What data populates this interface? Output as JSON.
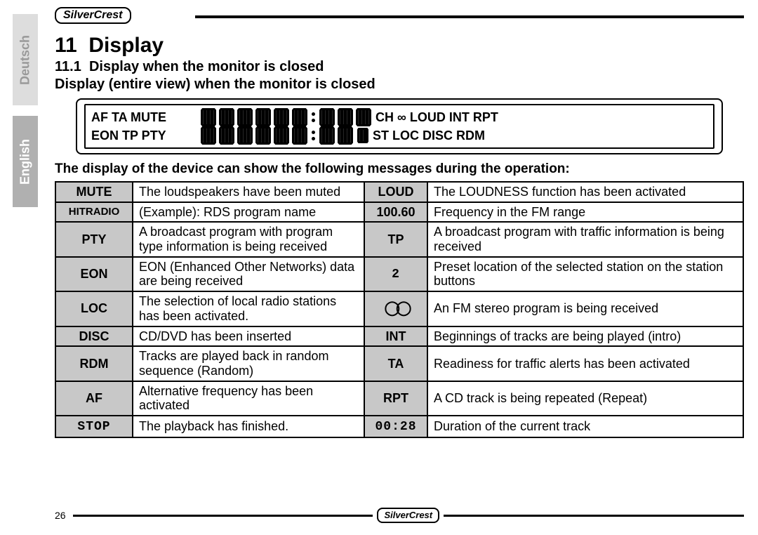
{
  "brand": "SilverCrest",
  "sidebar": {
    "deutsch": "Deutsch",
    "english": "English"
  },
  "heading_num": "11",
  "heading": "Display",
  "sub_num": "11.1",
  "sub": "Display when the monitor is closed",
  "sub2": "Display (entire view) when the monitor is closed",
  "lcd_row1_left": "AF  TA  MUTE",
  "lcd_row1_right": "CH  ∞  LOUD  INT   RPT",
  "lcd_row2_left": "EON  TP  PTY",
  "lcd_row2_right": "ST  LOC   DISC  RDM",
  "intro": "The display of the device can show the following messages during the operation:",
  "rows": [
    {
      "l": "MUTE",
      "ld": "The loudspeakers have been muted",
      "r": "LOUD",
      "rd": "The LOUDNESS function has been activated"
    },
    {
      "l": "HITRADIO",
      "ld": "(Example): RDS program name",
      "r": "100.60",
      "rd": "Frequency in the FM range"
    },
    {
      "l": "PTY",
      "ld": "A broadcast program with program type information is being received",
      "r": "TP",
      "rd": "A broadcast program with traffic information is being received"
    },
    {
      "l": "EON",
      "ld": "EON (Enhanced Other Networks) data are being received",
      "r": "2",
      "rseg": true,
      "rd": "Preset location of the selected station on the station buttons"
    },
    {
      "l": "LOC",
      "ld": "The selection of local radio stations has been activated.",
      "r": "∞",
      "rstereo": true,
      "rd": "An FM stereo program is being received"
    },
    {
      "l": "DISC",
      "ld": "CD/DVD has been inserted",
      "r": "INT",
      "rd": "Beginnings of tracks are being played (intro)"
    },
    {
      "l": "RDM",
      "ld": "Tracks are played back in random sequence (Random)",
      "r": "TA",
      "rd": "Readiness for traffic alerts has been activated"
    },
    {
      "l": "AF",
      "ld": "Alternative frequency has been activated",
      "r": "RPT",
      "rd": "A CD track is being repeated (Repeat)"
    },
    {
      "l": "STOP",
      "lseg": true,
      "ld": "The playback has finished.",
      "r": "00:28",
      "rseg": true,
      "rd": "Duration of the current track"
    }
  ],
  "pagenum": "26"
}
